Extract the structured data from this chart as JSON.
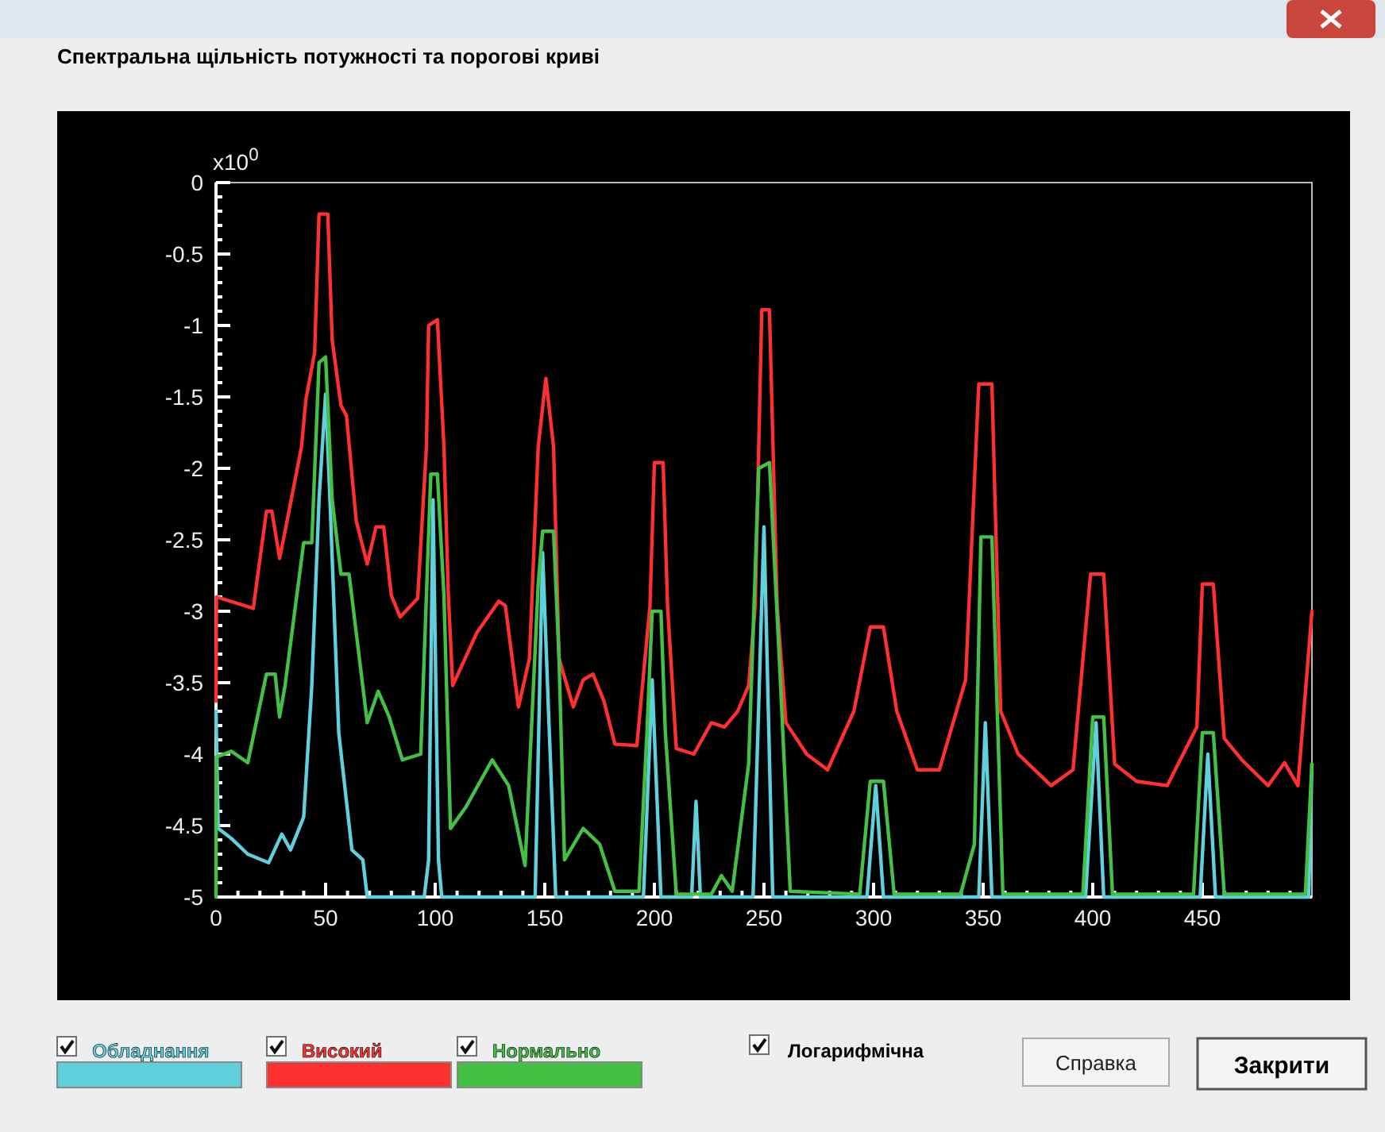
{
  "chart_data": {
    "type": "line",
    "title": "Спектральна щільність потужності та порогові криві",
    "annotations": [
      "x10$^{0}$",
      "Логарифмічна",
      "Справка",
      "Закрити"
    ],
    "xlim": [
      0,
      500
    ],
    "xticks": [
      0,
      50,
      100,
      150,
      200,
      250,
      300,
      350,
      400,
      450
    ],
    "ylim": [
      -5,
      0
    ],
    "yticks": [
      -5,
      -4.5,
      -4,
      -3.5,
      -3,
      -2.5,
      -2,
      -1.5,
      -1,
      -0.5,
      0
    ],
    "grid": false,
    "legend": "bottom",
    "marker": "none",
    "line_style": "solid",
    "series": [
      {
        "name": "Обладнання",
        "color": "#5fd0dc",
        "x": [
          0,
          1,
          7,
          14.5,
          24,
          30,
          34,
          40,
          43.7,
          47,
          50,
          52,
          56,
          62,
          67,
          69,
          95,
          97,
          99,
          101.5,
          103,
          145.6,
          149,
          151.7,
          155,
          195,
          199,
          203,
          217,
          219,
          221,
          245,
          250,
          254,
          297,
          301,
          304.5,
          348,
          351,
          354,
          396.7,
          401.5,
          405,
          449,
          452.5,
          456,
          498.5,
          500
        ],
        "values": [
          -3.7,
          -4.52,
          -4.59,
          -4.7,
          -4.76,
          -4.56,
          -4.67,
          -4.44,
          -3.52,
          -2.22,
          -1.48,
          -2.22,
          -3.85,
          -4.67,
          -4.74,
          -5,
          -5,
          -4.74,
          -2.22,
          -4.74,
          -5,
          -5,
          -2.59,
          -3.7,
          -5,
          -5,
          -3.48,
          -5,
          -5,
          -4.33,
          -5,
          -5,
          -2.41,
          -5,
          -5,
          -4.22,
          -5,
          -5,
          -3.78,
          -5,
          -5,
          -3.78,
          -5,
          -5,
          -4.0,
          -5,
          -5,
          -4.07
        ]
      },
      {
        "name": "Високий",
        "color": "#ff3030",
        "x": [
          0,
          0.2,
          13,
          17,
          23,
          25.5,
          29,
          31.5,
          39,
          41,
          45,
          47,
          51,
          53,
          57,
          59.5,
          64,
          69,
          73,
          76.5,
          80,
          84,
          92,
          96,
          97,
          101,
          104,
          106,
          108,
          119,
          129,
          132,
          138,
          143,
          147,
          150.5,
          154,
          156.5,
          163,
          167.5,
          172,
          177,
          182,
          192,
          198,
          200,
          204,
          206,
          210,
          218,
          226,
          232,
          238,
          243,
          246,
          249,
          252.5,
          256,
          260,
          269.5,
          279,
          291,
          298.5,
          304.5,
          310.6,
          320,
          330,
          342,
          348,
          354,
          358,
          366,
          381,
          391,
          399,
          405,
          410,
          420,
          434,
          447.5,
          450,
          455,
          460,
          468,
          480,
          487.5,
          493.6,
          500
        ],
        "values": [
          -3.63,
          -2.9,
          -2.96,
          -2.98,
          -2.3,
          -2.3,
          -2.63,
          -2.44,
          -1.85,
          -1.52,
          -1.19,
          -0.22,
          -0.22,
          -1.1,
          -1.56,
          -1.63,
          -2.37,
          -2.67,
          -2.41,
          -2.41,
          -2.89,
          -3.04,
          -2.91,
          -1.85,
          -1.0,
          -0.96,
          -1.85,
          -2.89,
          -3.52,
          -3.15,
          -2.93,
          -2.96,
          -3.67,
          -3.33,
          -1.85,
          -1.37,
          -1.85,
          -3.33,
          -3.67,
          -3.48,
          -3.44,
          -3.63,
          -3.93,
          -3.94,
          -2.96,
          -1.96,
          -1.96,
          -2.96,
          -3.96,
          -4.0,
          -3.78,
          -3.81,
          -3.7,
          -3.52,
          -2.96,
          -0.89,
          -0.89,
          -2.96,
          -3.78,
          -4.0,
          -4.11,
          -3.7,
          -3.11,
          -3.11,
          -3.7,
          -4.11,
          -4.11,
          -3.48,
          -1.41,
          -1.41,
          -3.7,
          -4.0,
          -4.22,
          -4.11,
          -2.74,
          -2.74,
          -4.07,
          -4.19,
          -4.22,
          -3.81,
          -2.81,
          -2.81,
          -3.89,
          -4.04,
          -4.22,
          -4.06,
          -4.22,
          -3.0
        ]
      },
      {
        "name": "Нормально",
        "color": "#44c044",
        "x": [
          0,
          0.1,
          7,
          14.5,
          23,
          27,
          29,
          31.5,
          40,
          43.7,
          47,
          50,
          53,
          57,
          60.7,
          69,
          74,
          79,
          85,
          93.4,
          96,
          98,
          101,
          104,
          107,
          114,
          126,
          133.5,
          141,
          147,
          149,
          154,
          156.5,
          159,
          167.5,
          175,
          182,
          193,
          196.6,
          199,
          203,
          205,
          210,
          226,
          230.6,
          235.5,
          243,
          247.6,
          252.5,
          257,
          262,
          293.7,
          298.5,
          304.5,
          309.4,
          339.7,
          346,
          349,
          354,
          359,
          395.5,
          400,
          405,
          409,
          446,
          450,
          455,
          460,
          497,
          500
        ],
        "values": [
          -5,
          -4.02,
          -3.98,
          -4.06,
          -3.44,
          -3.44,
          -3.74,
          -3.52,
          -2.52,
          -2.52,
          -1.26,
          -1.22,
          -2.22,
          -2.74,
          -2.74,
          -3.78,
          -3.56,
          -3.74,
          -4.04,
          -4.0,
          -2.89,
          -2.04,
          -2.04,
          -2.89,
          -4.52,
          -4.37,
          -4.04,
          -4.22,
          -4.78,
          -2.81,
          -2.44,
          -2.44,
          -3.33,
          -4.74,
          -4.52,
          -4.63,
          -4.96,
          -4.96,
          -3.85,
          -3.0,
          -3.0,
          -3.85,
          -4.98,
          -4.98,
          -4.85,
          -4.96,
          -4.07,
          -2.0,
          -1.96,
          -3.33,
          -4.96,
          -4.98,
          -4.19,
          -4.19,
          -4.98,
          -4.98,
          -4.63,
          -2.48,
          -2.48,
          -4.98,
          -4.98,
          -3.74,
          -3.74,
          -4.98,
          -4.98,
          -3.85,
          -3.85,
          -4.98,
          -4.98,
          -4.07
        ]
      }
    ]
  }
}
